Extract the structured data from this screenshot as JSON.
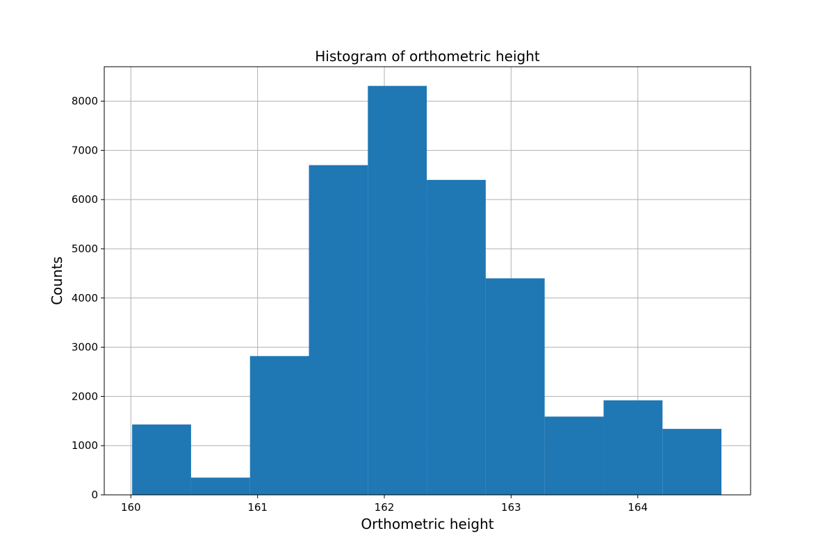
{
  "chart_data": {
    "type": "bar",
    "title": "Histogram of orthometric height",
    "xlabel": "Orthometric height",
    "ylabel": "Counts",
    "xlim": [
      159.79,
      164.89
    ],
    "ylim": [
      0,
      8700
    ],
    "grid": true,
    "bar_color": "#1f77b4",
    "x_ticks": [
      {
        "value": 160,
        "label": "160"
      },
      {
        "value": 161,
        "label": "161"
      },
      {
        "value": 162,
        "label": "162"
      },
      {
        "value": 163,
        "label": "163"
      },
      {
        "value": 164,
        "label": "164"
      }
    ],
    "y_ticks": [
      {
        "value": 0,
        "label": "0"
      },
      {
        "value": 1000,
        "label": "1000"
      },
      {
        "value": 2000,
        "label": "2000"
      },
      {
        "value": 3000,
        "label": "3000"
      },
      {
        "value": 4000,
        "label": "4000"
      },
      {
        "value": 5000,
        "label": "5000"
      },
      {
        "value": 6000,
        "label": "6000"
      },
      {
        "value": 7000,
        "label": "7000"
      },
      {
        "value": 8000,
        "label": "8000"
      }
    ],
    "bins": [
      {
        "x0": 160.01,
        "x1": 160.475,
        "count": 1430
      },
      {
        "x0": 160.475,
        "x1": 160.94,
        "count": 350
      },
      {
        "x0": 160.94,
        "x1": 161.405,
        "count": 2820
      },
      {
        "x0": 161.405,
        "x1": 161.87,
        "count": 6700
      },
      {
        "x0": 161.87,
        "x1": 162.335,
        "count": 8310
      },
      {
        "x0": 162.335,
        "x1": 162.8,
        "count": 6400
      },
      {
        "x0": 162.8,
        "x1": 163.265,
        "count": 4400
      },
      {
        "x0": 163.265,
        "x1": 163.73,
        "count": 1590
      },
      {
        "x0": 163.73,
        "x1": 164.195,
        "count": 1920
      },
      {
        "x0": 164.195,
        "x1": 164.66,
        "count": 1340
      }
    ]
  }
}
